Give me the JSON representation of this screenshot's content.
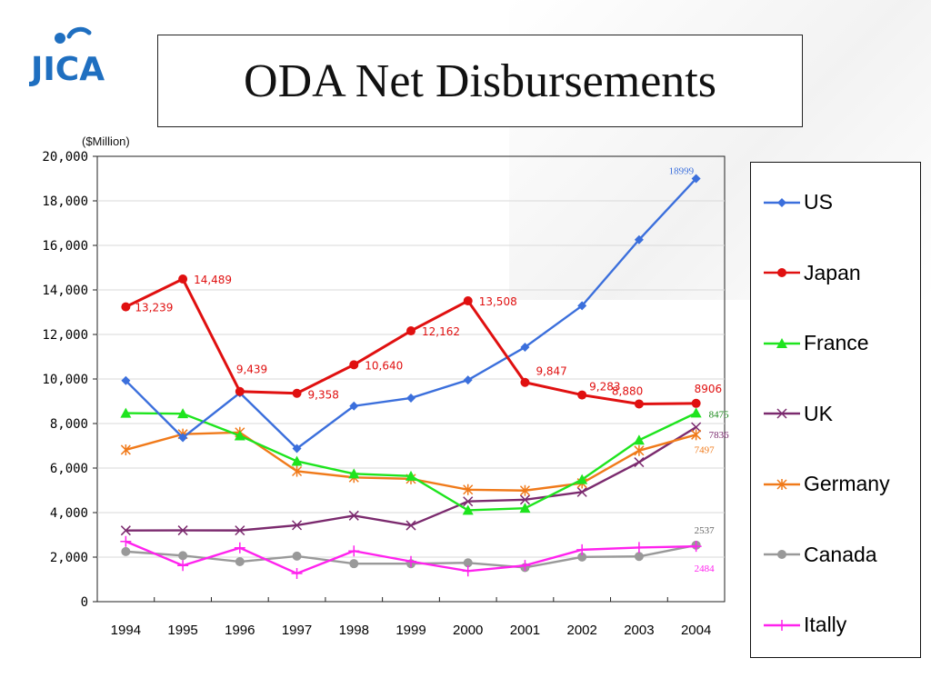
{
  "logo": {
    "text": "JICA",
    "color": "#1f6fc0"
  },
  "title": "ODA Net Disbursements",
  "unit_label": "($Million)",
  "chart_data": {
    "type": "line",
    "title": "ODA Net Disbursements",
    "ylabel": "($Million)",
    "xlabel": "",
    "categories": [
      "1994",
      "1995",
      "1996",
      "1997",
      "1998",
      "1999",
      "2000",
      "2001",
      "2002",
      "2003",
      "2004"
    ],
    "ylim": [
      0,
      20000
    ],
    "yticks": [
      0,
      2000,
      4000,
      6000,
      8000,
      10000,
      12000,
      14000,
      16000,
      18000,
      20000
    ],
    "ytick_labels": [
      "0",
      "2,000",
      "4,000",
      "6,000",
      "8,000",
      "10,000",
      "12,000",
      "14,000",
      "16,000",
      "18,000",
      "20,000"
    ],
    "grid": "horizontal",
    "legend_position": "right",
    "series": [
      {
        "name": "US",
        "color": "#3b6fdc",
        "marker": "diamond",
        "values": [
          9927,
          7367,
          9377,
          6878,
          8786,
          9145,
          9955,
          11429,
          13290,
          16254,
          18999
        ],
        "labels": [
          {
            "index": 10,
            "text": "18999"
          }
        ]
      },
      {
        "name": "Japan",
        "color": "#e01010",
        "marker": "circle",
        "values": [
          13239,
          14489,
          9439,
          9358,
          10640,
          12162,
          13508,
          9847,
          9283,
          8880,
          8906
        ],
        "labels": [
          {
            "index": 0,
            "text": "13,239"
          },
          {
            "index": 1,
            "text": "14,489"
          },
          {
            "index": 2,
            "text": "9,439"
          },
          {
            "index": 3,
            "text": "9,358"
          },
          {
            "index": 4,
            "text": "10,640"
          },
          {
            "index": 5,
            "text": "12,162"
          },
          {
            "index": 6,
            "text": "13,508"
          },
          {
            "index": 7,
            "text": "9,847"
          },
          {
            "index": 8,
            "text": "9,283"
          },
          {
            "index": 9,
            "text": "8,880"
          },
          {
            "index": 10,
            "text": "8906"
          }
        ]
      },
      {
        "name": "France",
        "color": "#1ee41e",
        "marker": "triangle",
        "values": [
          8466,
          8443,
          7451,
          6307,
          5742,
          5639,
          4105,
          4198,
          5486,
          7253,
          8475
        ],
        "labels": [
          {
            "index": 10,
            "text": "8475"
          }
        ]
      },
      {
        "name": "UK",
        "color": "#7b2a6e",
        "marker": "x",
        "values": [
          3197,
          3202,
          3199,
          3433,
          3864,
          3426,
          4501,
          4579,
          4924,
          6262,
          7836
        ],
        "labels": [
          {
            "index": 10,
            "text": "7836"
          }
        ]
      },
      {
        "name": "Germany",
        "color": "#f07a1a",
        "marker": "star",
        "values": [
          6818,
          7524,
          7601,
          5857,
          5581,
          5515,
          5030,
          4990,
          5324,
          6784,
          7497
        ],
        "labels": [
          {
            "index": 10,
            "text": "7497"
          }
        ]
      },
      {
        "name": "Canada",
        "color": "#999999",
        "marker": "circle",
        "values": [
          2250,
          2067,
          1795,
          2045,
          1707,
          1706,
          1744,
          1533,
          2006,
          2031,
          2537
        ],
        "labels": [
          {
            "index": 10,
            "text": "2537"
          }
        ]
      },
      {
        "name": "Itally",
        "color": "#ff22ee",
        "marker": "plus",
        "values": [
          2705,
          1623,
          2416,
          1266,
          2278,
          1806,
          1376,
          1627,
          2332,
          2433,
          2484
        ],
        "labels": [
          {
            "index": 10,
            "text": "2484"
          }
        ]
      }
    ]
  }
}
